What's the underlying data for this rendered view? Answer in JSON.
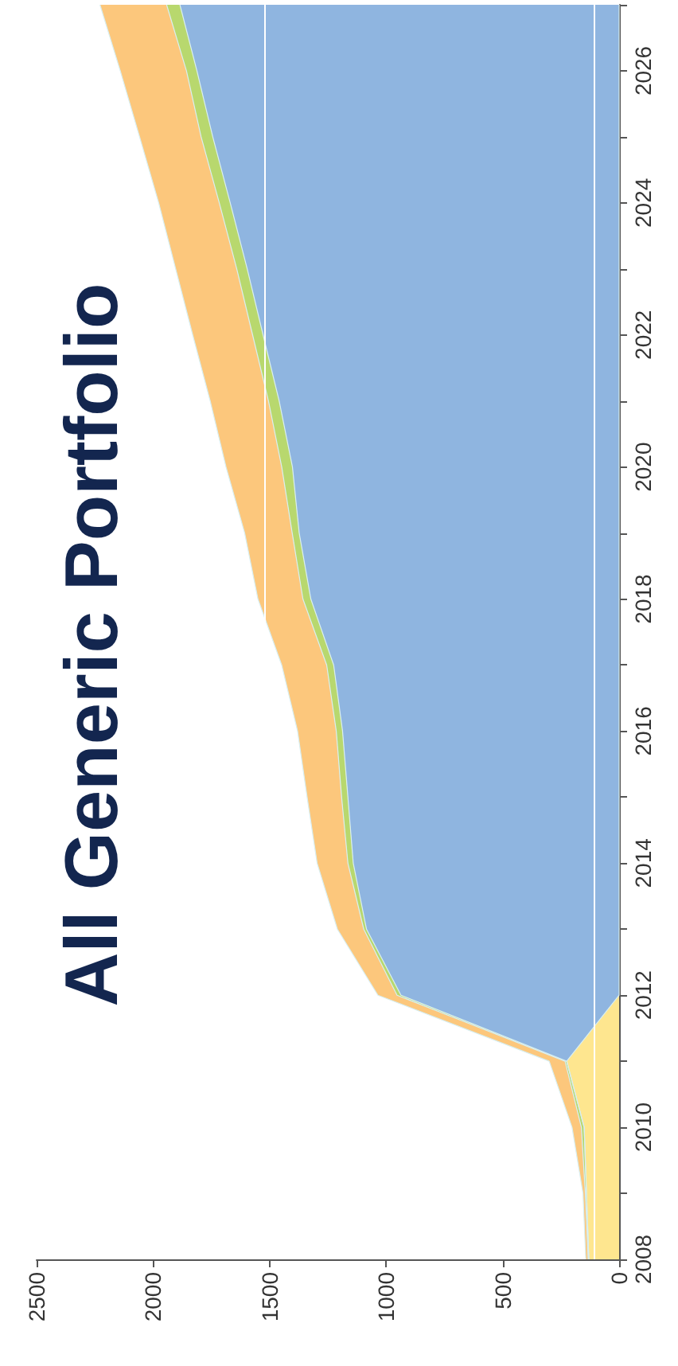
{
  "chart_data": {
    "type": "area",
    "title": "All Generic Portfolio",
    "stacked": true,
    "orientation": "horizontal",
    "categories": [
      null,
      "2026",
      null,
      "2024",
      null,
      "2022",
      null,
      "2020",
      null,
      "2018",
      null,
      "2016",
      null,
      "2014",
      null,
      "2012",
      null,
      "2010",
      null,
      "2008"
    ],
    "series": [
      {
        "color": "#fee68f",
        "values": [
          0,
          0,
          0,
          0,
          0,
          0,
          0,
          0,
          0,
          0,
          0,
          0,
          0,
          0,
          0,
          0,
          225,
          150,
          140,
          130
        ]
      },
      {
        "color": "#8fb5e0",
        "values": [
          1885,
          1812,
          1744,
          1669,
          1596,
          1528,
          1459,
          1402,
          1373,
          1323,
          1225,
          1187,
          1164,
          1141,
          1084,
          936,
          0,
          0,
          0,
          0
        ]
      },
      {
        "color": "#b8d86e",
        "values": [
          57,
          45,
          50,
          47,
          45,
          45,
          46,
          46,
          30,
          34,
          30,
          27,
          27,
          23,
          12,
          17,
          7,
          12,
          5,
          3
        ]
      },
      {
        "color": "#fcc77c",
        "values": [
          286,
          284,
          264,
          260,
          262,
          257,
          250,
          239,
          204,
          193,
          193,
          166,
          148,
          132,
          113,
          82,
          68,
          40,
          10,
          10
        ]
      }
    ],
    "xlim": [
      2500,
      0
    ],
    "xticks": [
      0,
      500,
      1000,
      1500,
      2000,
      2500
    ],
    "ref_lines": [
      {
        "axis": "x",
        "value": 110,
        "color": "#ffffff"
      },
      {
        "axis": "x",
        "value": 1520,
        "color": "#ffffff"
      }
    ]
  }
}
